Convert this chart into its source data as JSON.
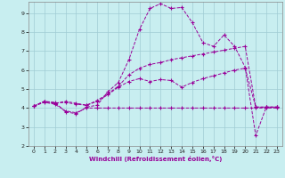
{
  "xlabel": "Windchill (Refroidissement éolien,°C)",
  "bg_color": "#c8eef0",
  "line_color": "#990099",
  "grid_color": "#a0ccd4",
  "xlim": [
    -0.5,
    23.5
  ],
  "ylim": [
    2,
    9.6
  ],
  "xticks": [
    0,
    1,
    2,
    3,
    4,
    5,
    6,
    7,
    8,
    9,
    10,
    11,
    12,
    13,
    14,
    15,
    16,
    17,
    18,
    19,
    20,
    21,
    22,
    23
  ],
  "yticks": [
    2,
    3,
    4,
    5,
    6,
    7,
    8,
    9
  ],
  "series1_x": [
    0,
    1,
    2,
    3,
    4,
    5,
    6,
    7,
    8,
    9,
    10,
    11,
    12,
    13,
    14,
    15,
    16,
    17,
    18,
    19,
    20,
    21,
    22,
    23
  ],
  "series1_y": [
    4.1,
    4.3,
    4.2,
    3.85,
    3.75,
    4.0,
    4.0,
    4.0,
    4.0,
    4.0,
    4.0,
    4.0,
    4.0,
    4.0,
    4.0,
    4.0,
    4.0,
    4.0,
    4.0,
    4.0,
    4.0,
    4.0,
    4.0,
    4.0
  ],
  "series2_x": [
    0,
    1,
    2,
    3,
    4,
    5,
    6,
    7,
    8,
    9,
    10,
    11,
    12,
    13,
    14,
    15,
    16,
    17,
    18,
    19,
    20,
    21,
    22,
    23
  ],
  "series2_y": [
    4.1,
    4.35,
    4.25,
    4.3,
    4.2,
    4.15,
    4.35,
    4.7,
    5.1,
    5.4,
    5.55,
    5.4,
    5.5,
    5.45,
    5.1,
    5.35,
    5.55,
    5.7,
    5.85,
    6.0,
    6.1,
    4.05,
    4.05,
    4.05
  ],
  "series3_x": [
    0,
    1,
    2,
    3,
    4,
    5,
    6,
    7,
    8,
    9,
    10,
    11,
    12,
    13,
    14,
    15,
    16,
    17,
    18,
    19,
    20,
    21,
    22,
    23
  ],
  "series3_y": [
    4.1,
    4.35,
    4.25,
    4.35,
    4.25,
    4.15,
    4.4,
    4.75,
    5.15,
    5.75,
    6.1,
    6.3,
    6.4,
    6.55,
    6.65,
    6.75,
    6.85,
    6.95,
    7.05,
    7.15,
    7.25,
    4.05,
    4.05,
    4.05
  ],
  "series4_x": [
    0,
    1,
    2,
    3,
    4,
    5,
    6,
    7,
    8,
    9,
    10,
    11,
    12,
    13,
    14,
    15,
    16,
    17,
    18,
    19,
    20,
    21,
    22,
    23
  ],
  "series4_y": [
    4.1,
    4.35,
    4.3,
    3.8,
    3.7,
    4.05,
    4.15,
    4.85,
    5.35,
    6.55,
    8.15,
    9.25,
    9.5,
    9.25,
    9.3,
    8.5,
    7.45,
    7.25,
    7.85,
    7.25,
    6.15,
    2.55,
    4.05,
    4.05
  ]
}
